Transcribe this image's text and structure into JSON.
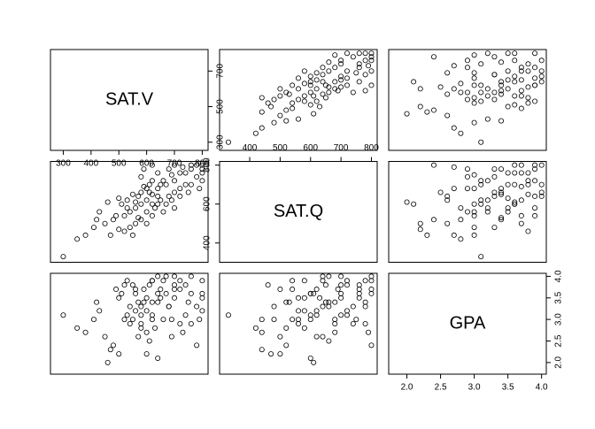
{
  "chart_data": {
    "type": "scatter-matrix",
    "variables": [
      {
        "name": "SAT.V",
        "lim": [
          254,
          821
        ],
        "xticks": [
          300,
          400,
          500,
          600,
          700,
          800
        ],
        "yticks": [
          300,
          500,
          700
        ],
        "values": [
          620,
          580,
          700,
          540,
          800,
          450,
          650,
          600,
          720,
          520,
          760,
          480,
          680,
          560,
          630,
          590,
          740,
          500,
          660,
          610,
          380,
          800,
          570,
          690,
          430,
          640,
          550,
          720,
          600,
          780,
          510,
          670,
          470,
          620,
          700,
          580,
          530,
          750,
          640,
          410,
          800,
          560,
          690,
          620,
          350,
          590,
          730,
          660,
          500,
          610,
          780,
          540,
          700,
          460,
          650,
          580,
          760,
          620,
          520,
          800,
          300,
          680,
          600,
          720,
          560,
          640,
          490,
          790,
          570,
          670,
          420,
          740,
          600,
          530,
          700,
          620,
          580,
          760,
          640,
          550
        ]
      },
      {
        "name": "SAT.Q",
        "lim": [
          301,
          819
        ],
        "xticks": [
          400,
          500,
          600,
          700,
          800
        ],
        "yticks": [
          400,
          600,
          800
        ],
        "values": [
          650,
          600,
          720,
          560,
          780,
          500,
          700,
          620,
          760,
          540,
          800,
          520,
          640,
          610,
          580,
          690,
          700,
          470,
          720,
          660,
          440,
          800,
          530,
          750,
          560,
          600,
          650,
          680,
          560,
          740,
          600,
          700,
          440,
          720,
          800,
          520,
          580,
          660,
          760,
          480,
          720,
          500,
          620,
          540,
          420,
          780,
          790,
          560,
          630,
          700,
          800,
          480,
          660,
          610,
          620,
          740,
          700,
          600,
          460,
          760,
          330,
          780,
          500,
          640,
          580,
          680,
          540,
          680,
          640,
          600,
          520,
          760,
          680,
          620,
          580,
          800,
          660,
          780,
          640,
          440
        ]
      },
      {
        "name": "GPA",
        "lim": [
          1.73,
          4.07
        ],
        "xticks": [
          {
            "value": 2,
            "label": "2.0"
          },
          2.5,
          {
            "value": 3,
            "label": "3.0"
          },
          3.5,
          {
            "value": 4,
            "label": "4.0"
          }
        ],
        "yticks": [
          {
            "value": 2,
            "label": "2.0"
          },
          2.5,
          {
            "value": 3,
            "label": "3.0"
          },
          3.5,
          {
            "value": 4,
            "label": "4.0"
          }
        ],
        "values": [
          3.4,
          3.1,
          3.8,
          2.9,
          3.9,
          2.6,
          3.5,
          3.2,
          3.7,
          3.0,
          4.0,
          2.4,
          3.3,
          3.6,
          2.8,
          3.7,
          3.1,
          2.2,
          3.9,
          2.5,
          2.7,
          3.6,
          3.4,
          3.0,
          3.2,
          2.1,
          3.8,
          2.9,
          3.5,
          3.3,
          3.6,
          4.0,
          2.3,
          3.1,
          3.7,
          2.8,
          3.9,
          3.4,
          3.6,
          3.0,
          3.2,
          3.7,
          2.6,
          3.9,
          2.8,
          3.4,
          2.7,
          3.0,
          3.5,
          3.8,
          2.4,
          3.3,
          4.0,
          2.0,
          3.7,
          2.9,
          3.6,
          3.0,
          3.8,
          3.5,
          3.1,
          3.3,
          2.2,
          3.9,
          3.2,
          3.4,
          3.7,
          3.0,
          2.6,
          3.6,
          3.4,
          3.8,
          2.7,
          3.1,
          3.5,
          3.9,
          3.3,
          2.9,
          4.0,
          3.0
        ]
      }
    ]
  }
}
